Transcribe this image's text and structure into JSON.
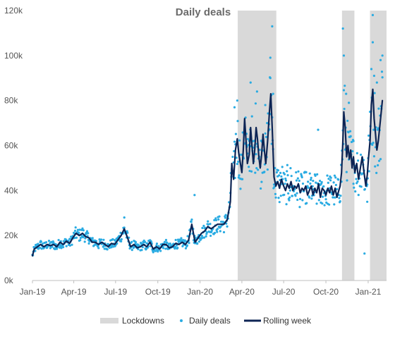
{
  "chart_data": {
    "type": "line",
    "title": "Daily deals",
    "xlabel": "",
    "ylabel": "",
    "x_range": [
      "2019-01-01",
      "2021-02-10"
    ],
    "ylim": [
      0,
      120000
    ],
    "y_ticks": [
      {
        "value": 0,
        "label": "0k"
      },
      {
        "value": 20000,
        "label": "20k"
      },
      {
        "value": 40000,
        "label": "40k"
      },
      {
        "value": 60000,
        "label": "60k"
      },
      {
        "value": 80000,
        "label": "80k"
      },
      {
        "value": 100000,
        "label": "100k"
      },
      {
        "value": 120000,
        "label": "120k"
      }
    ],
    "x_ticks": [
      {
        "date": "2019-01-01",
        "label": "Jan-19"
      },
      {
        "date": "2019-04-01",
        "label": "Apr-19"
      },
      {
        "date": "2019-07-01",
        "label": "Jul-19"
      },
      {
        "date": "2019-10-01",
        "label": "Oct-19"
      },
      {
        "date": "2020-01-01",
        "label": "Jan-20"
      },
      {
        "date": "2020-04-01",
        "label": "Apr-20"
      },
      {
        "date": "2020-07-01",
        "label": "Jul-20"
      },
      {
        "date": "2020-10-01",
        "label": "Oct-20"
      },
      {
        "date": "2021-01-01",
        "label": "Jan-21"
      }
    ],
    "grid": false,
    "legend": {
      "position": "bottom",
      "entries": [
        "Lockdowns",
        "Daily deals",
        "Rolling week"
      ]
    },
    "colors": {
      "lockdown": "#d9d9d9",
      "daily": "#29abe2",
      "rolling": "#0d2454",
      "axis": "#bfbfbf"
    },
    "lockdowns": [
      {
        "name": "Lockdowns",
        "start": "2020-03-23",
        "end": "2020-06-15"
      },
      {
        "name": "Lockdowns",
        "start": "2020-11-05",
        "end": "2020-12-02"
      },
      {
        "name": "Lockdowns",
        "start": "2021-01-05",
        "end": "2021-02-10"
      }
    ],
    "series": [
      {
        "name": "Rolling week",
        "type": "line",
        "points": [
          [
            "2019-01-01",
            11000
          ],
          [
            "2019-01-05",
            14000
          ],
          [
            "2019-01-12",
            15000
          ],
          [
            "2019-01-19",
            16000
          ],
          [
            "2019-01-26",
            15000
          ],
          [
            "2019-02-02",
            16000
          ],
          [
            "2019-02-09",
            15500
          ],
          [
            "2019-02-16",
            16000
          ],
          [
            "2019-02-23",
            15000
          ],
          [
            "2019-03-02",
            17000
          ],
          [
            "2019-03-09",
            16000
          ],
          [
            "2019-03-16",
            17500
          ],
          [
            "2019-03-23",
            16500
          ],
          [
            "2019-03-30",
            19000
          ],
          [
            "2019-04-06",
            21000
          ],
          [
            "2019-04-13",
            20000
          ],
          [
            "2019-04-20",
            21000
          ],
          [
            "2019-04-27",
            19500
          ],
          [
            "2019-05-04",
            19000
          ],
          [
            "2019-05-11",
            17000
          ],
          [
            "2019-05-18",
            17000
          ],
          [
            "2019-05-25",
            16000
          ],
          [
            "2019-06-01",
            17000
          ],
          [
            "2019-06-08",
            16000
          ],
          [
            "2019-06-15",
            15000
          ],
          [
            "2019-06-22",
            16500
          ],
          [
            "2019-06-29",
            16000
          ],
          [
            "2019-07-06",
            18000
          ],
          [
            "2019-07-13",
            20000
          ],
          [
            "2019-07-20",
            23000
          ],
          [
            "2019-07-27",
            19000
          ],
          [
            "2019-08-03",
            15000
          ],
          [
            "2019-08-10",
            16000
          ],
          [
            "2019-08-17",
            14500
          ],
          [
            "2019-08-24",
            15000
          ],
          [
            "2019-08-31",
            16000
          ],
          [
            "2019-09-07",
            15000
          ],
          [
            "2019-09-14",
            17000
          ],
          [
            "2019-09-21",
            14000
          ],
          [
            "2019-09-28",
            15000
          ],
          [
            "2019-10-05",
            14000
          ],
          [
            "2019-10-12",
            16000
          ],
          [
            "2019-10-19",
            16000
          ],
          [
            "2019-10-26",
            14500
          ],
          [
            "2019-11-02",
            15000
          ],
          [
            "2019-11-09",
            16500
          ],
          [
            "2019-11-16",
            16000
          ],
          [
            "2019-11-23",
            17000
          ],
          [
            "2019-11-30",
            16000
          ],
          [
            "2019-12-07",
            18000
          ],
          [
            "2019-12-14",
            25000
          ],
          [
            "2019-12-21",
            17000
          ],
          [
            "2019-12-28",
            19000
          ],
          [
            "2020-01-04",
            21000
          ],
          [
            "2020-01-11",
            22000
          ],
          [
            "2020-01-18",
            24000
          ],
          [
            "2020-01-25",
            23000
          ],
          [
            "2020-02-01",
            24000
          ],
          [
            "2020-02-08",
            25000
          ],
          [
            "2020-02-15",
            25000
          ],
          [
            "2020-02-22",
            25000
          ],
          [
            "2020-02-29",
            27000
          ],
          [
            "2020-03-07",
            35000
          ],
          [
            "2020-03-10",
            52000
          ],
          [
            "2020-03-14",
            45000
          ],
          [
            "2020-03-18",
            58000
          ],
          [
            "2020-03-22",
            63000
          ],
          [
            "2020-03-25",
            57000
          ],
          [
            "2020-03-28",
            53000
          ],
          [
            "2020-04-01",
            48000
          ],
          [
            "2020-04-04",
            58000
          ],
          [
            "2020-04-07",
            72000
          ],
          [
            "2020-04-10",
            62000
          ],
          [
            "2020-04-13",
            52000
          ],
          [
            "2020-04-17",
            56000
          ],
          [
            "2020-04-20",
            68000
          ],
          [
            "2020-04-23",
            60000
          ],
          [
            "2020-04-26",
            52000
          ],
          [
            "2020-04-29",
            58000
          ],
          [
            "2020-05-02",
            68000
          ],
          [
            "2020-05-05",
            63000
          ],
          [
            "2020-05-08",
            55000
          ],
          [
            "2020-05-11",
            50000
          ],
          [
            "2020-05-14",
            56000
          ],
          [
            "2020-05-17",
            65000
          ],
          [
            "2020-05-20",
            58000
          ],
          [
            "2020-05-23",
            52000
          ],
          [
            "2020-05-27",
            62000
          ],
          [
            "2020-05-31",
            75000
          ],
          [
            "2020-06-03",
            83000
          ],
          [
            "2020-06-06",
            68000
          ],
          [
            "2020-06-10",
            46000
          ],
          [
            "2020-06-14",
            42000
          ],
          [
            "2020-06-18",
            44000
          ],
          [
            "2020-06-22",
            41000
          ],
          [
            "2020-06-26",
            45000
          ],
          [
            "2020-07-01",
            42000
          ],
          [
            "2020-07-05",
            40000
          ],
          [
            "2020-07-09",
            43000
          ],
          [
            "2020-07-13",
            41000
          ],
          [
            "2020-07-17",
            44000
          ],
          [
            "2020-07-21",
            40000
          ],
          [
            "2020-07-25",
            42000
          ],
          [
            "2020-07-29",
            41000
          ],
          [
            "2020-08-02",
            43000
          ],
          [
            "2020-08-06",
            39000
          ],
          [
            "2020-08-10",
            41000
          ],
          [
            "2020-08-14",
            40000
          ],
          [
            "2020-08-18",
            42000
          ],
          [
            "2020-08-22",
            38000
          ],
          [
            "2020-08-26",
            40000
          ],
          [
            "2020-08-30",
            42000
          ],
          [
            "2020-09-03",
            38000
          ],
          [
            "2020-09-07",
            41000
          ],
          [
            "2020-09-11",
            39000
          ],
          [
            "2020-09-15",
            43000
          ],
          [
            "2020-09-19",
            37000
          ],
          [
            "2020-09-23",
            41000
          ],
          [
            "2020-09-27",
            40000
          ],
          [
            "2020-10-01",
            38000
          ],
          [
            "2020-10-05",
            41000
          ],
          [
            "2020-10-09",
            39000
          ],
          [
            "2020-10-13",
            42000
          ],
          [
            "2020-10-17",
            38000
          ],
          [
            "2020-10-21",
            41000
          ],
          [
            "2020-10-25",
            37000
          ],
          [
            "2020-10-29",
            40000
          ],
          [
            "2020-11-01",
            42000
          ],
          [
            "2020-11-04",
            48000
          ],
          [
            "2020-11-07",
            62000
          ],
          [
            "2020-11-09",
            75000
          ],
          [
            "2020-11-12",
            68000
          ],
          [
            "2020-11-15",
            55000
          ],
          [
            "2020-11-18",
            60000
          ],
          [
            "2020-11-21",
            54000
          ],
          [
            "2020-11-24",
            58000
          ],
          [
            "2020-11-27",
            50000
          ],
          [
            "2020-11-30",
            55000
          ],
          [
            "2020-12-03",
            48000
          ],
          [
            "2020-12-07",
            52000
          ],
          [
            "2020-12-11",
            45000
          ],
          [
            "2020-12-15",
            50000
          ],
          [
            "2020-12-19",
            55000
          ],
          [
            "2020-12-23",
            48000
          ],
          [
            "2020-12-27",
            42000
          ],
          [
            "2020-12-30",
            47000
          ],
          [
            "2021-01-02",
            55000
          ],
          [
            "2021-01-05",
            62000
          ],
          [
            "2021-01-08",
            78000
          ],
          [
            "2021-01-11",
            85000
          ],
          [
            "2021-01-14",
            72000
          ],
          [
            "2021-01-17",
            65000
          ],
          [
            "2021-01-20",
            58000
          ],
          [
            "2021-01-23",
            62000
          ],
          [
            "2021-01-27",
            70000
          ],
          [
            "2021-02-01",
            80000
          ]
        ]
      },
      {
        "name": "Daily deals",
        "type": "scatter",
        "base": "Rolling week",
        "period_days": 1,
        "noise": [
          0.09,
          0.29,
          0.5
        ],
        "extra_points": [
          [
            "2019-07-20",
            28000
          ],
          [
            "2019-12-20",
            38000
          ],
          [
            "2020-03-16",
            77000
          ],
          [
            "2020-03-22",
            80000
          ],
          [
            "2020-04-20",
            88000
          ],
          [
            "2020-05-04",
            84000
          ],
          [
            "2020-05-22",
            78000
          ],
          [
            "2020-06-02",
            90000
          ],
          [
            "2020-06-06",
            113000
          ],
          [
            "2020-06-08",
            83000
          ],
          [
            "2020-09-14",
            67000
          ],
          [
            "2020-11-07",
            112000
          ],
          [
            "2020-11-09",
            100000
          ],
          [
            "2020-11-14",
            83000
          ],
          [
            "2020-11-20",
            79000
          ],
          [
            "2020-11-30",
            62000
          ],
          [
            "2020-12-24",
            12000
          ],
          [
            "2020-12-30",
            35000
          ],
          [
            "2021-01-08",
            94000
          ],
          [
            "2021-01-11",
            118000
          ],
          [
            "2021-01-14",
            91000
          ],
          [
            "2021-01-20",
            88000
          ],
          [
            "2021-01-28",
            98000
          ],
          [
            "2021-02-01",
            100000
          ]
        ]
      }
    ]
  }
}
